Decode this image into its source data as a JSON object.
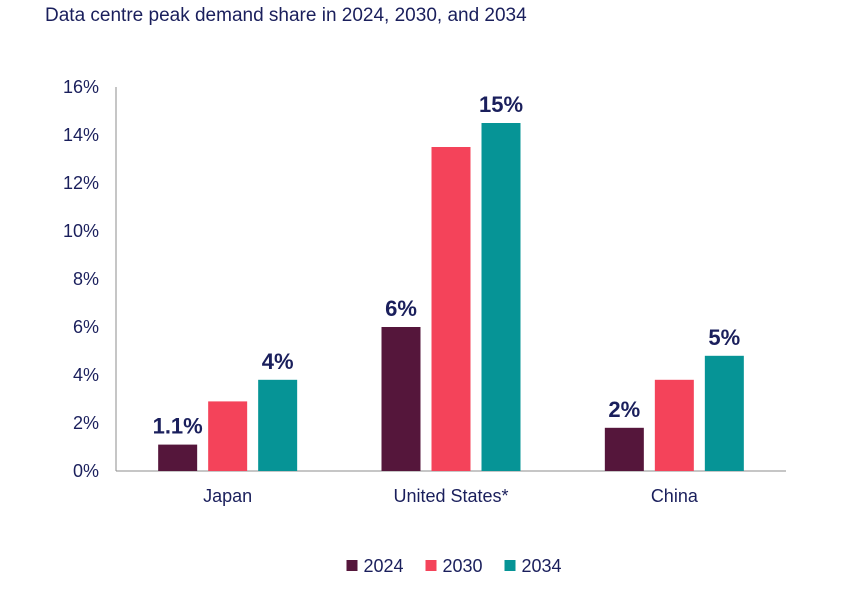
{
  "chart_data": {
    "type": "bar",
    "title": "Data centre peak demand share in 2024, 2030, and 2034",
    "xlabel": "",
    "ylabel": "",
    "categories": [
      "Japan",
      "United States*",
      "China"
    ],
    "series": [
      {
        "name": "2024",
        "color": "#55163b",
        "values": [
          1.1,
          6.0,
          1.8
        ],
        "labels": [
          "1.1%",
          "6%",
          "2%"
        ]
      },
      {
        "name": "2030",
        "color": "#f4435a",
        "values": [
          2.9,
          13.5,
          3.8
        ],
        "labels": [
          "",
          "",
          ""
        ]
      },
      {
        "name": "2034",
        "color": "#069496",
        "values": [
          3.8,
          14.5,
          4.8
        ],
        "labels": [
          "4%",
          "15%",
          "5%"
        ]
      }
    ],
    "yticks": [
      "0%",
      "2%",
      "4%",
      "6%",
      "8%",
      "10%",
      "12%",
      "14%",
      "16%"
    ],
    "ylim": [
      0,
      16
    ],
    "grid": false,
    "legend": "bottom-center"
  }
}
